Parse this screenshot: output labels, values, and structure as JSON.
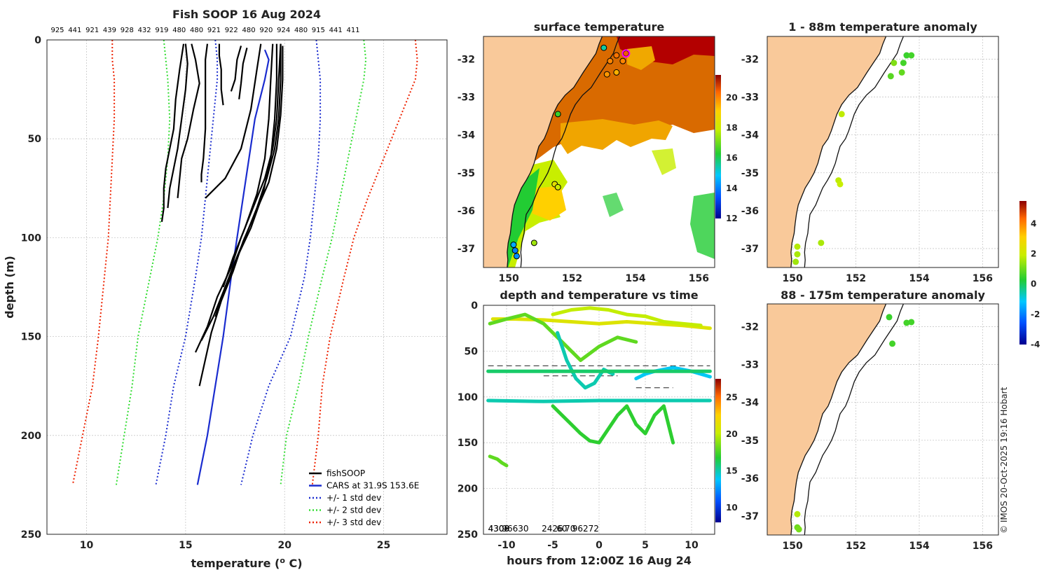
{
  "figure": {
    "main_title": "Fish SOOP 16 Aug 2024",
    "credit": "© IMOS 20-Oct-2025 19:16 Hobart"
  },
  "palette": {
    "fishsoop": "#000000",
    "cars": "#1a2ccf",
    "std1": "#1a2ccf",
    "std2": "#33dd33",
    "std3": "#ee2200",
    "land": "#f9c99a",
    "warm_sst": "#d96a00",
    "hot_sst": "#b30000"
  },
  "chart_data": [
    {
      "id": "profiles",
      "type": "line",
      "title": "Fish SOOP 16 Aug 2024",
      "top_labels": [
        "925",
        "441",
        "921",
        "439",
        "928",
        "432",
        "919",
        "480",
        "480",
        "921",
        "922",
        "480",
        "920",
        "924",
        "480",
        "915",
        "441",
        "411"
      ],
      "xlabel": "temperature (o C)",
      "ylabel": "depth (m)",
      "xlim": [
        8,
        28.2
      ],
      "ylim": [
        250,
        0
      ],
      "xticks": [
        10,
        15,
        20,
        25
      ],
      "yticks": [
        0,
        50,
        100,
        150,
        200,
        250
      ],
      "grid": true,
      "legend_position": "bottom-right",
      "legend": [
        "fishSOOP",
        "CARS at 31.9S 153.6E",
        "+/- 1 std dev",
        "+/- 2 std dev",
        "+/- 3 std dev"
      ],
      "series": [
        {
          "name": "CARS",
          "depth": [
            5,
            10,
            20,
            40,
            60,
            80,
            100,
            120,
            150,
            175,
            200,
            225
          ],
          "temp": [
            19.0,
            19.2,
            19.0,
            18.5,
            18.2,
            17.9,
            17.6,
            17.3,
            16.9,
            16.5,
            16.1,
            15.6
          ]
        },
        {
          "name": "+1 std",
          "depth": [
            0,
            10,
            20,
            40,
            60,
            80,
            100,
            120,
            150,
            175,
            200,
            225
          ],
          "temp": [
            21.6,
            21.7,
            21.8,
            21.8,
            21.7,
            21.5,
            21.3,
            21.0,
            20.3,
            19.2,
            18.4,
            17.8
          ]
        },
        {
          "name": "-1 std",
          "depth": [
            0,
            10,
            20,
            40,
            60,
            80,
            100,
            120,
            150,
            175,
            200,
            225
          ],
          "temp": [
            16.5,
            16.6,
            16.6,
            16.4,
            16.2,
            16.0,
            15.8,
            15.5,
            15.0,
            14.4,
            14.0,
            13.5
          ]
        },
        {
          "name": "+2 std",
          "depth": [
            0,
            10,
            20,
            40,
            60,
            80,
            100,
            120,
            150,
            175,
            200,
            225
          ],
          "temp": [
            24.0,
            24.1,
            24.0,
            23.6,
            23.2,
            22.8,
            22.4,
            21.9,
            21.2,
            20.7,
            20.1,
            19.8
          ]
        },
        {
          "name": "-2 std",
          "depth": [
            0,
            10,
            20,
            40,
            60,
            80,
            100,
            120,
            150,
            175,
            200,
            225
          ],
          "temp": [
            13.9,
            14.0,
            14.1,
            14.2,
            14.1,
            13.9,
            13.6,
            13.2,
            12.6,
            12.3,
            11.9,
            11.5
          ]
        },
        {
          "name": "+3 std",
          "depth": [
            0,
            10,
            20,
            40,
            60,
            80,
            100,
            120,
            150,
            175,
            200,
            225
          ],
          "temp": [
            26.6,
            26.7,
            26.6,
            25.8,
            25.0,
            24.2,
            23.5,
            23.0,
            22.3,
            21.9,
            21.7,
            21.4
          ]
        },
        {
          "name": "-3 std",
          "depth": [
            0,
            10,
            20,
            40,
            60,
            80,
            100,
            120,
            150,
            175,
            200,
            225
          ],
          "temp": [
            11.3,
            11.3,
            11.4,
            11.4,
            11.3,
            11.2,
            11.1,
            10.9,
            10.6,
            10.3,
            9.8,
            9.3
          ]
        }
      ],
      "profiles": [
        {
          "temp": [
            14.9,
            14.7,
            14.5,
            14.4,
            14.2,
            14.0,
            13.9,
            13.9,
            13.8
          ],
          "depth": [
            2,
            15,
            30,
            45,
            55,
            65,
            75,
            85,
            92
          ]
        },
        {
          "temp": [
            15.0,
            15.1,
            15.0,
            14.8,
            14.6,
            14.4,
            14.2,
            14.1
          ],
          "depth": [
            2,
            12,
            25,
            40,
            55,
            65,
            75,
            85
          ]
        },
        {
          "temp": [
            15.3,
            15.5,
            15.7,
            15.4,
            15.1,
            14.8,
            14.7,
            14.6
          ],
          "depth": [
            2,
            10,
            22,
            35,
            50,
            60,
            70,
            80
          ]
        },
        {
          "temp": [
            16.1,
            16.0,
            16.0,
            16.0,
            15.9,
            15.8,
            15.8
          ],
          "depth": [
            2,
            10,
            25,
            45,
            60,
            68,
            72
          ]
        },
        {
          "temp": [
            16.7,
            16.7,
            16.8,
            16.8,
            16.9
          ],
          "depth": [
            2,
            8,
            15,
            25,
            33
          ]
        },
        {
          "temp": [
            17.8,
            17.6,
            17.5,
            17.3
          ],
          "depth": [
            3,
            10,
            20,
            26
          ]
        },
        {
          "temp": [
            18.1,
            17.9,
            17.8,
            17.7
          ],
          "depth": [
            4,
            12,
            22,
            30
          ]
        },
        {
          "temp": [
            18.8,
            18.6,
            18.3,
            17.8,
            17.0,
            16.0
          ],
          "depth": [
            2,
            15,
            35,
            55,
            70,
            80
          ]
        },
        {
          "temp": [
            19.8,
            19.7,
            19.6,
            19.4,
            19.0,
            18.4,
            17.8,
            17.3,
            16.6,
            16.1,
            15.5
          ],
          "depth": [
            2,
            20,
            40,
            55,
            70,
            85,
            100,
            115,
            130,
            145,
            158
          ]
        },
        {
          "temp": [
            19.8,
            19.8,
            19.7,
            19.5,
            19.1,
            18.6,
            18.0,
            17.5,
            17.0,
            16.4,
            15.8
          ],
          "depth": [
            2,
            20,
            40,
            55,
            70,
            85,
            100,
            112,
            125,
            140,
            152
          ]
        },
        {
          "temp": [
            19.9,
            19.9,
            19.8,
            19.6,
            19.2,
            18.5,
            17.9,
            17.4,
            16.8,
            16.3,
            15.7
          ],
          "depth": [
            3,
            20,
            38,
            55,
            72,
            88,
            102,
            117,
            132,
            148,
            175
          ]
        },
        {
          "temp": [
            19.6,
            19.6,
            19.5,
            19.3,
            18.9,
            18.3,
            17.6,
            17.0,
            16.5
          ],
          "depth": [
            2,
            20,
            40,
            60,
            78,
            95,
            110,
            125,
            140
          ]
        },
        {
          "temp": [
            19.4,
            19.3,
            19.2,
            19.0,
            18.6,
            18.0,
            17.4,
            16.9
          ],
          "depth": [
            2,
            20,
            40,
            60,
            78,
            95,
            110,
            125
          ]
        }
      ]
    },
    {
      "id": "sst",
      "type": "heatmap",
      "title": "surface temperature",
      "xlim": [
        149.2,
        156.5
      ],
      "ylim": [
        -37.5,
        -31.4
      ],
      "xticks": [
        150,
        152,
        154,
        156
      ],
      "yticks": [
        -32,
        -33,
        -34,
        -35,
        -36,
        -37
      ],
      "colorbar": {
        "min": 12,
        "max": 21.5,
        "ticks": [
          12,
          14,
          16,
          18,
          20
        ]
      },
      "stations": [
        {
          "lon": 153.0,
          "lat": -31.7,
          "temp": 15.5
        },
        {
          "lon": 153.7,
          "lat": -31.85,
          "temp": 20.5
        },
        {
          "lon": 153.4,
          "lat": -31.9,
          "temp": 20.2
        },
        {
          "lon": 153.2,
          "lat": -32.05,
          "temp": 20.0
        },
        {
          "lon": 153.6,
          "lat": -32.05,
          "temp": 20.0
        },
        {
          "lon": 153.1,
          "lat": -32.4,
          "temp": 19.8
        },
        {
          "lon": 153.4,
          "lat": -32.35,
          "temp": 19.5
        },
        {
          "lon": 151.55,
          "lat": -33.45,
          "temp": 16.5
        },
        {
          "lon": 151.45,
          "lat": -35.3,
          "temp": 18.5
        },
        {
          "lon": 151.55,
          "lat": -35.38,
          "temp": 18.0
        },
        {
          "lon": 150.8,
          "lat": -36.85,
          "temp": 17.5
        },
        {
          "lon": 150.15,
          "lat": -36.9,
          "temp": 14.5
        },
        {
          "lon": 150.2,
          "lat": -37.05,
          "temp": 14.0
        },
        {
          "lon": 150.25,
          "lat": -37.2,
          "temp": 14.2
        }
      ]
    },
    {
      "id": "anom_shallow",
      "type": "scatter",
      "title": "1 - 88m temperature anomaly",
      "xlim": [
        149.2,
        156.5
      ],
      "ylim": [
        -37.5,
        -31.4
      ],
      "xticks": [
        150,
        152,
        154,
        156
      ],
      "yticks": [
        -32,
        -33,
        -34,
        -35,
        -36,
        -37
      ],
      "points": [
        {
          "lon": 153.6,
          "lat": -31.9,
          "anom": 0.5
        },
        {
          "lon": 153.75,
          "lat": -31.9,
          "anom": 0.6
        },
        {
          "lon": 153.2,
          "lat": -32.1,
          "anom": 1.2
        },
        {
          "lon": 153.5,
          "lat": -32.1,
          "anom": 0.6
        },
        {
          "lon": 153.1,
          "lat": -32.45,
          "anom": 0.8
        },
        {
          "lon": 153.45,
          "lat": -32.35,
          "anom": 0.9
        },
        {
          "lon": 151.55,
          "lat": -33.45,
          "anom": 1.8
        },
        {
          "lon": 151.45,
          "lat": -35.2,
          "anom": 1.8
        },
        {
          "lon": 151.5,
          "lat": -35.3,
          "anom": 1.9
        },
        {
          "lon": 150.9,
          "lat": -36.85,
          "anom": 1.6
        },
        {
          "lon": 150.15,
          "lat": -36.95,
          "anom": 1.7
        },
        {
          "lon": 150.15,
          "lat": -37.15,
          "anom": 1.6
        },
        {
          "lon": 150.1,
          "lat": -37.35,
          "anom": 1.5
        }
      ]
    },
    {
      "id": "anom_deep",
      "type": "scatter",
      "title": "88 - 175m temperature anomaly",
      "xlim": [
        149.2,
        156.5
      ],
      "ylim": [
        -37.5,
        -31.4
      ],
      "xticks": [
        150,
        152,
        154,
        156
      ],
      "yticks": [
        -32,
        -33,
        -34,
        -35,
        -36,
        -37
      ],
      "colorbar": {
        "min": -4,
        "max": 5.5,
        "ticks": [
          -4,
          -2,
          0,
          2,
          4
        ]
      },
      "points": [
        {
          "lon": 153.05,
          "lat": -31.75,
          "anom": 0.5
        },
        {
          "lon": 153.6,
          "lat": -31.9,
          "anom": 0.6
        },
        {
          "lon": 153.75,
          "lat": -31.88,
          "anom": 0.6
        },
        {
          "lon": 153.15,
          "lat": -32.45,
          "anom": 0.6
        },
        {
          "lon": 150.15,
          "lat": -36.95,
          "anom": 1.7
        },
        {
          "lon": 150.15,
          "lat": -37.3,
          "anom": 1.0
        },
        {
          "lon": 150.2,
          "lat": -37.35,
          "anom": 1.1
        }
      ]
    },
    {
      "id": "depth_time",
      "type": "scatter",
      "title": "depth and temperature vs time",
      "xlabel": "hours from 12:00Z 16 Aug 24",
      "xlim": [
        -12.5,
        12.5
      ],
      "ylim": [
        250,
        0
      ],
      "xticks": [
        -10,
        -5,
        0,
        5,
        10
      ],
      "yticks": [
        0,
        50,
        100,
        150,
        200,
        250
      ],
      "colorbar": {
        "min": 8,
        "max": 27.5,
        "ticks": [
          10,
          15,
          20,
          25
        ]
      },
      "bottom_labels": [
        {
          "text": "4308",
          "hour": -12.0
        },
        {
          "text": "4309",
          "hour": -12.0
        },
        {
          "text": "96630",
          "hour": -10.5
        },
        {
          "text": "2426",
          "hour": -6.2
        },
        {
          "text": "60",
          "hour": -4.6
        },
        {
          "text": "70",
          "hour": -3.7
        },
        {
          "text": "96272",
          "hour": -2.9
        }
      ],
      "dashed_levels": [
        {
          "depth": 66,
          "from": -12.0,
          "to": 12.0
        },
        {
          "depth": 77,
          "from": -6.0,
          "to": 2.0
        },
        {
          "depth": 90,
          "from": 4.0,
          "to": 8.0
        },
        {
          "depth": 104,
          "from": -12.0,
          "to": 12.0
        }
      ],
      "tracks": [
        {
          "temp": 21,
          "hours": [
            -11.5,
            -9,
            -6,
            -3,
            0,
            3,
            6,
            9,
            12
          ],
          "depth": [
            15,
            15,
            16,
            18,
            20,
            18,
            20,
            22,
            25
          ]
        },
        {
          "temp": 20,
          "hours": [
            -5,
            -3,
            -1,
            1,
            3,
            5,
            7,
            9,
            11
          ],
          "depth": [
            10,
            5,
            3,
            5,
            10,
            12,
            18,
            20,
            22
          ]
        },
        {
          "temp": 18,
          "hours": [
            -11.8,
            -10,
            -8,
            -6,
            -4,
            -2,
            0,
            2,
            4
          ],
          "depth": [
            20,
            15,
            10,
            20,
            40,
            60,
            45,
            35,
            40
          ]
        },
        {
          "temp": 15,
          "hours": [
            -4.5,
            -3.5,
            -2.5,
            -1.5,
            -0.5,
            0.5,
            1.5
          ],
          "depth": [
            30,
            60,
            80,
            90,
            85,
            70,
            75
          ]
        },
        {
          "temp": 14,
          "hours": [
            4,
            5,
            6,
            7,
            8,
            9,
            10,
            11,
            12
          ],
          "depth": [
            80,
            75,
            72,
            70,
            68,
            70,
            72,
            75,
            78
          ]
        },
        {
          "temp": 17,
          "hours": [
            -5,
            -4,
            -3,
            -2,
            -1,
            0,
            1,
            2,
            3,
            4,
            5,
            6,
            7,
            8
          ],
          "depth": [
            110,
            120,
            130,
            140,
            148,
            150,
            135,
            120,
            110,
            130,
            140,
            120,
            110,
            150
          ]
        },
        {
          "temp": 16,
          "hours": [
            -12,
            -6,
            0,
            6,
            12
          ],
          "depth": [
            72,
            72,
            72,
            72,
            72
          ]
        },
        {
          "temp": 15,
          "hours": [
            -12,
            -6,
            0,
            6,
            12
          ],
          "depth": [
            104,
            105,
            104,
            104,
            104
          ]
        },
        {
          "temp": 18,
          "hours": [
            -11.8,
            -11,
            -10.5,
            -10
          ],
          "depth": [
            165,
            168,
            172,
            175
          ]
        }
      ]
    }
  ]
}
